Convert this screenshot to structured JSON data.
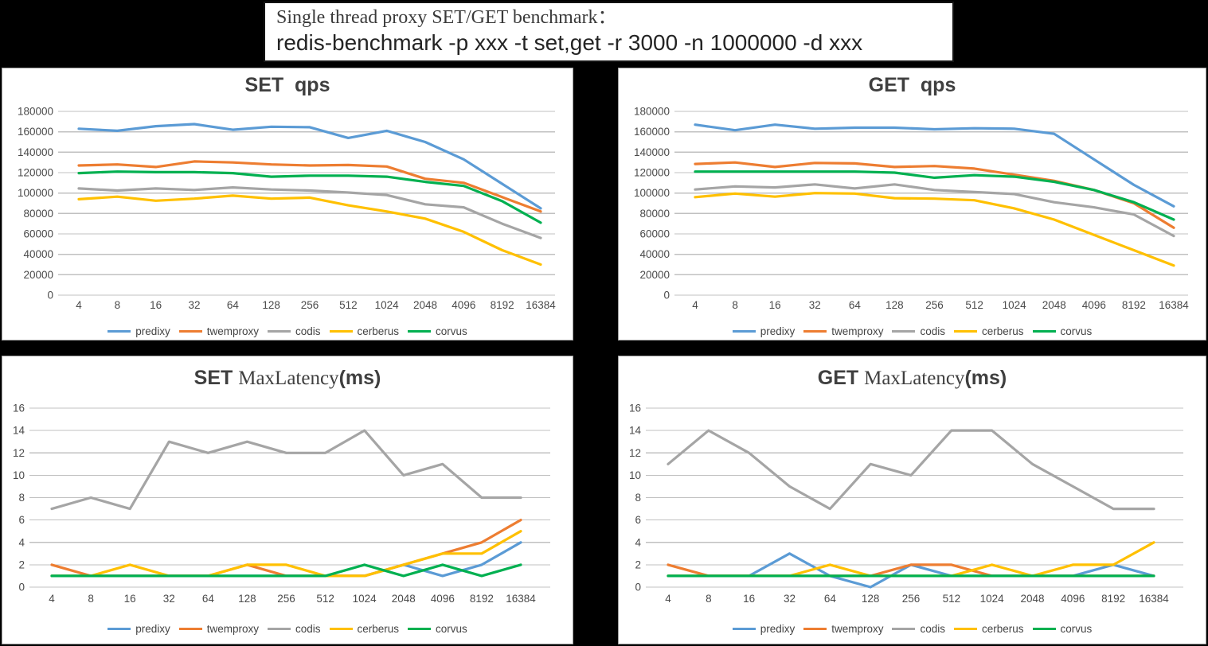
{
  "header": {
    "line1": "Single thread proxy SET/GET benchmark：",
    "line2": "redis-benchmark -p xxx -t set,get -r 3000 -n 1000000 -d xxx"
  },
  "palette": {
    "predixy": "#5B9BD5",
    "twemproxy": "#ED7D31",
    "codis": "#A5A5A5",
    "cerberus": "#FFC000",
    "corvus": "#00B050",
    "grid": "#C0C0C0",
    "tick_text": "#4a4a4a",
    "title_text": "#3f3f3f"
  },
  "legend": [
    "predixy",
    "twemproxy",
    "codis",
    "cerberus",
    "corvus"
  ],
  "categories": [
    "4",
    "8",
    "16",
    "32",
    "64",
    "128",
    "256",
    "512",
    "1024",
    "2048",
    "4096",
    "8192",
    "16384"
  ],
  "chart_data": [
    {
      "id": "set-qps",
      "type": "line",
      "title": "SET  qps",
      "title_segments": [
        {
          "text": "SET  qps",
          "style": "sans"
        }
      ],
      "xlabel": "",
      "ylabel": "",
      "ylim": [
        0,
        180000
      ],
      "ytick_interval": 20000,
      "yticks": [
        "0",
        "20000",
        "40000",
        "60000",
        "80000",
        "100000",
        "120000",
        "140000",
        "160000",
        "180000"
      ],
      "grid": true,
      "legend_position": "bottom",
      "categories": [
        "4",
        "8",
        "16",
        "32",
        "64",
        "128",
        "256",
        "512",
        "1024",
        "2048",
        "4096",
        "8192",
        "16384"
      ],
      "series": [
        {
          "name": "predixy",
          "color": "#5B9BD5",
          "values": [
            163000,
            161000,
            165500,
            167500,
            162000,
            165000,
            164500,
            154000,
            161000,
            150000,
            133000,
            109000,
            85000
          ]
        },
        {
          "name": "twemproxy",
          "color": "#ED7D31",
          "values": [
            127000,
            128000,
            125500,
            131000,
            130000,
            128000,
            127000,
            127500,
            126000,
            114000,
            110000,
            96000,
            82000
          ]
        },
        {
          "name": "codis",
          "color": "#A5A5A5",
          "values": [
            104500,
            102500,
            104500,
            103000,
            105500,
            103500,
            102500,
            100500,
            98000,
            89000,
            86000,
            70000,
            56000
          ]
        },
        {
          "name": "cerberus",
          "color": "#FFC000",
          "values": [
            94000,
            96500,
            92500,
            94500,
            97500,
            94500,
            95500,
            88000,
            82000,
            75000,
            62000,
            44000,
            30000
          ]
        },
        {
          "name": "corvus",
          "color": "#00B050",
          "values": [
            119500,
            121000,
            120500,
            120500,
            119500,
            116000,
            117000,
            117000,
            116000,
            111000,
            107000,
            92000,
            71000
          ]
        }
      ]
    },
    {
      "id": "get-qps",
      "type": "line",
      "title": "GET  qps",
      "title_segments": [
        {
          "text": "GET  qps",
          "style": "sans"
        }
      ],
      "xlabel": "",
      "ylabel": "",
      "ylim": [
        0,
        180000
      ],
      "ytick_interval": 20000,
      "yticks": [
        "0",
        "20000",
        "40000",
        "60000",
        "80000",
        "100000",
        "120000",
        "140000",
        "160000",
        "180000"
      ],
      "grid": true,
      "legend_position": "bottom",
      "categories": [
        "4",
        "8",
        "16",
        "32",
        "64",
        "128",
        "256",
        "512",
        "1024",
        "2048",
        "4096",
        "8192",
        "16384"
      ],
      "series": [
        {
          "name": "predixy",
          "color": "#5B9BD5",
          "values": [
            167000,
            161500,
            167000,
            163000,
            164000,
            164000,
            162500,
            163500,
            163000,
            158000,
            133000,
            108000,
            87000
          ]
        },
        {
          "name": "twemproxy",
          "color": "#ED7D31",
          "values": [
            128500,
            130000,
            125500,
            129500,
            129000,
            125500,
            126500,
            124000,
            118000,
            112000,
            103000,
            90000,
            66000
          ]
        },
        {
          "name": "codis",
          "color": "#A5A5A5",
          "values": [
            103500,
            106500,
            105500,
            108500,
            104500,
            108500,
            103000,
            101000,
            99000,
            91000,
            86000,
            79000,
            58000
          ]
        },
        {
          "name": "cerberus",
          "color": "#FFC000",
          "values": [
            96000,
            99500,
            96500,
            100000,
            99500,
            95000,
            94500,
            93000,
            85000,
            74000,
            59000,
            44000,
            29000
          ]
        },
        {
          "name": "corvus",
          "color": "#00B050",
          "values": [
            121000,
            121000,
            121000,
            121000,
            121000,
            120000,
            115000,
            117500,
            116000,
            111000,
            103000,
            91000,
            74000
          ]
        }
      ]
    },
    {
      "id": "set-latency",
      "type": "line",
      "title": "SET MaxLatency(ms)",
      "title_segments": [
        {
          "text": "SET ",
          "style": "sans"
        },
        {
          "text": "MaxLatency",
          "style": "serif"
        },
        {
          "text": "(ms)",
          "style": "sans"
        }
      ],
      "xlabel": "",
      "ylabel": "",
      "ylim": [
        0,
        16
      ],
      "ytick_interval": 2,
      "yticks": [
        "0",
        "2",
        "4",
        "6",
        "8",
        "10",
        "12",
        "14",
        "16"
      ],
      "grid": true,
      "legend_position": "bottom",
      "categories": [
        "4",
        "8",
        "16",
        "32",
        "64",
        "128",
        "256",
        "512",
        "1024",
        "2048",
        "4096",
        "8192",
        "16384"
      ],
      "series": [
        {
          "name": "predixy",
          "color": "#5B9BD5",
          "values": [
            1,
            1,
            1,
            1,
            1,
            1,
            1,
            1,
            1,
            2,
            1,
            2,
            4
          ]
        },
        {
          "name": "twemproxy",
          "color": "#ED7D31",
          "values": [
            2,
            1,
            1,
            1,
            1,
            2,
            1,
            1,
            1,
            2,
            3,
            4,
            6
          ]
        },
        {
          "name": "codis",
          "color": "#A5A5A5",
          "values": [
            7,
            8,
            7,
            13,
            12,
            13,
            12,
            12,
            14,
            10,
            11,
            8,
            8
          ]
        },
        {
          "name": "cerberus",
          "color": "#FFC000",
          "values": [
            1,
            1,
            2,
            1,
            1,
            2,
            2,
            1,
            1,
            2,
            3,
            3,
            5
          ]
        },
        {
          "name": "corvus",
          "color": "#00B050",
          "values": [
            1,
            1,
            1,
            1,
            1,
            1,
            1,
            1,
            2,
            1,
            2,
            1,
            2
          ]
        }
      ]
    },
    {
      "id": "get-latency",
      "type": "line",
      "title": "GET MaxLatency(ms)",
      "title_segments": [
        {
          "text": "GET ",
          "style": "sans"
        },
        {
          "text": "MaxLatency",
          "style": "serif"
        },
        {
          "text": "(ms)",
          "style": "sans"
        }
      ],
      "xlabel": "",
      "ylabel": "",
      "ylim": [
        0,
        16
      ],
      "ytick_interval": 2,
      "yticks": [
        "0",
        "2",
        "4",
        "6",
        "8",
        "10",
        "12",
        "14",
        "16"
      ],
      "grid": true,
      "legend_position": "bottom",
      "categories": [
        "4",
        "8",
        "16",
        "32",
        "64",
        "128",
        "256",
        "512",
        "1024",
        "2048",
        "4096",
        "8192",
        "16384"
      ],
      "series": [
        {
          "name": "predixy",
          "color": "#5B9BD5",
          "values": [
            1,
            1,
            1,
            3,
            1,
            0,
            2,
            1,
            1,
            1,
            1,
            2,
            1
          ]
        },
        {
          "name": "twemproxy",
          "color": "#ED7D31",
          "values": [
            2,
            1,
            1,
            1,
            1,
            1,
            2,
            2,
            1,
            1,
            1,
            1,
            1
          ]
        },
        {
          "name": "codis",
          "color": "#A5A5A5",
          "values": [
            11,
            14,
            12,
            9,
            7,
            11,
            10,
            14,
            14,
            11,
            9,
            7,
            7
          ]
        },
        {
          "name": "cerberus",
          "color": "#FFC000",
          "values": [
            1,
            1,
            1,
            1,
            2,
            1,
            1,
            1,
            2,
            1,
            2,
            2,
            4
          ]
        },
        {
          "name": "corvus",
          "color": "#00B050",
          "values": [
            1,
            1,
            1,
            1,
            1,
            1,
            1,
            1,
            1,
            1,
            1,
            1,
            1
          ]
        }
      ]
    }
  ]
}
